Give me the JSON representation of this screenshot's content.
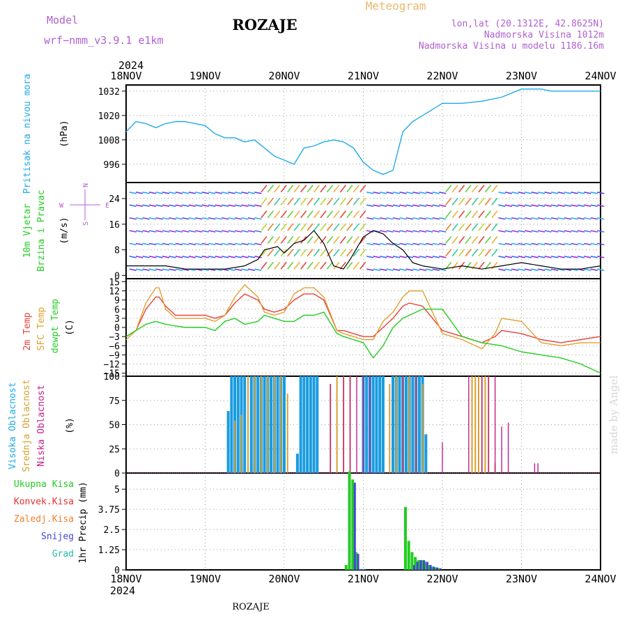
{
  "header": {
    "model_label": "Model",
    "model_name": "wrf−nmm_v3.9.1  e1km",
    "location": "ROZAJE",
    "meteogram_label": "Meteogram",
    "lonlat": "lon,lat (20.1312E, 42.8625N)",
    "elevation": "Nadmorska Visina 1012m",
    "model_elevation": "Nadmorska Visina u modelu 1186.16m",
    "year": "2024",
    "footer_station": "ROZAJE",
    "watermark": "made by Angel"
  },
  "x_axis": {
    "labels": [
      "18NOV",
      "19NOV",
      "20NOV",
      "21NOV",
      "22NOV",
      "23NOV",
      "24NOV"
    ],
    "year": "2024"
  },
  "colors": {
    "pressure": "#1eaae8",
    "temp2m": "#e8403a",
    "sfc_temp": "#e0a030",
    "dewpt": "#22cc22",
    "wind_speed": "#000000",
    "cloud_high": "#1a9ce0",
    "cloud_mid": "#d4a030",
    "cloud_low": "#c0208a",
    "precip_total": "#22cc22",
    "precip_conv": "#e83030",
    "precip_snow": "#4444dd",
    "precip_grad": "#22bbaa"
  },
  "panels": {
    "pressure": {
      "label_main": "Pritisak na nivou mora",
      "label_unit": "(hPa)",
      "ticks": [
        "1032",
        "1020",
        "1008",
        "996"
      ]
    },
    "wind": {
      "label_main": "10m Vjetar",
      "label_sub": "Brzina i Pravac",
      "label_unit": "(m/s)",
      "compass_n": "N",
      "compass_w": "W",
      "compass_e": "E",
      "compass_s": "S",
      "ticks": [
        "24",
        "16",
        "8",
        "0"
      ]
    },
    "temp": {
      "label_2m": "2m Temp",
      "label_sfc": "SFC Temp",
      "label_dew": "dewpt Temp",
      "label_unit": "(C)",
      "ticks": [
        "15",
        "12",
        "9",
        "6",
        "3",
        "0",
        "−3",
        "−6",
        "−9",
        "−12",
        "−15"
      ]
    },
    "cloud": {
      "label_high": "Visoka Oblacnost",
      "label_mid": "Srednja Oblacnost",
      "label_low": "Niska Oblacnost",
      "label_unit": "(%)",
      "ticks": [
        "100",
        "75",
        "50",
        "25",
        "0"
      ]
    },
    "precip": {
      "label_main": "1hr Precip (mm)",
      "legend_total": "Ukupna Kisa",
      "legend_conv": "Konvek.Kisa",
      "legend_frz": "Zaledj.Kisa",
      "legend_snow": "Snijeg",
      "legend_grad": "Grad",
      "ticks": [
        "5",
        "3.75",
        "2.5",
        "1.25",
        "0"
      ]
    }
  },
  "chart_data": [
    {
      "type": "line",
      "title": "Pritisak na nivou mora",
      "ylabel": "(hPa)",
      "ylim": [
        987,
        1035
      ],
      "x_unit": "hours from 18NOV 00UTC",
      "series": [
        {
          "name": "Pritisak na nivou mora",
          "x": [
            0,
            3,
            6,
            9,
            12,
            15,
            18,
            21,
            24,
            27,
            30,
            33,
            36,
            39,
            42,
            45,
            48,
            51,
            54,
            57,
            60,
            63,
            66,
            69,
            72,
            75,
            78,
            81,
            84,
            87,
            90,
            96,
            102,
            108,
            114,
            120,
            123,
            126,
            129,
            132,
            135,
            138,
            141,
            144
          ],
          "y": [
            1012,
            1017,
            1016,
            1014,
            1016,
            1017,
            1017,
            1016,
            1015,
            1011,
            1009,
            1009,
            1007,
            1008,
            1004,
            1000,
            998,
            996,
            1004,
            1005,
            1007,
            1008,
            1007,
            1004,
            997,
            993,
            991,
            993,
            1012,
            1017,
            1020,
            1026,
            1026,
            1027,
            1029,
            1033,
            1033,
            1033,
            1032,
            1032,
            1032,
            1032,
            1032,
            1032
          ]
        }
      ]
    },
    {
      "type": "line",
      "title": "10m Vjetar Brzina i Pravac",
      "ylabel": "(m/s)",
      "ylim": [
        -1,
        29
      ],
      "series": [
        {
          "name": "10m Vjetar",
          "x": [
            0,
            6,
            12,
            18,
            24,
            30,
            36,
            40,
            42,
            46,
            48,
            51,
            54,
            57,
            60,
            63,
            66,
            68,
            72,
            75,
            78,
            81,
            84,
            87,
            90,
            96,
            102,
            108,
            114,
            120,
            126,
            132,
            138,
            144
          ],
          "y": [
            3,
            3,
            3,
            2,
            2,
            2,
            3,
            5,
            8,
            9,
            7,
            10,
            11,
            14,
            10,
            3,
            2,
            5,
            12,
            14,
            13,
            10,
            8,
            4,
            3,
            2,
            3,
            2,
            3,
            4,
            3,
            2,
            2,
            3
          ]
        }
      ]
    },
    {
      "type": "line",
      "title": "Temperature",
      "ylabel": "(C)",
      "ylim": [
        -16,
        16
      ],
      "series": [
        {
          "name": "2m Temp",
          "x": [
            0,
            3,
            6,
            9,
            10,
            12,
            15,
            18,
            24,
            27,
            30,
            33,
            36,
            40,
            42,
            45,
            48,
            51,
            54,
            57,
            60,
            64,
            66,
            69,
            72,
            75,
            78,
            81,
            84,
            86,
            90,
            96,
            102,
            108,
            112,
            114,
            120,
            126,
            132,
            138,
            144
          ],
          "y": [
            -3,
            -1,
            6,
            10,
            10,
            7,
            4,
            4,
            4,
            3,
            4,
            8,
            11,
            9,
            6,
            5,
            6,
            9,
            11,
            11,
            9,
            -1,
            -1,
            -2,
            -3,
            -3,
            0,
            3,
            7,
            8,
            7,
            -1,
            -3,
            -5,
            -3,
            -1,
            -2,
            -4,
            -5,
            -4,
            -3
          ]
        },
        {
          "name": "SFC Temp",
          "x": [
            0,
            3,
            6,
            9,
            10,
            12,
            15,
            18,
            24,
            27,
            30,
            33,
            36,
            40,
            42,
            45,
            48,
            51,
            54,
            57,
            60,
            64,
            66,
            69,
            72,
            75,
            78,
            81,
            84,
            86,
            90,
            96,
            102,
            108,
            112,
            114,
            120,
            126,
            132,
            138,
            144
          ],
          "y": [
            -4,
            -1,
            8,
            13,
            13,
            6,
            3,
            3,
            3,
            2,
            4,
            10,
            14,
            10,
            5,
            4,
            5,
            11,
            13,
            13,
            10,
            -1,
            -2,
            -3,
            -4,
            -4,
            2,
            5,
            10,
            12,
            12,
            -2,
            -4,
            -7,
            -2,
            3,
            2,
            -5,
            -6,
            -5,
            -5
          ]
        },
        {
          "name": "dewpt Temp",
          "x": [
            0,
            3,
            6,
            9,
            12,
            18,
            24,
            27,
            30,
            33,
            36,
            40,
            42,
            45,
            48,
            51,
            54,
            57,
            60,
            64,
            66,
            69,
            72,
            75,
            78,
            81,
            84,
            90,
            96,
            102,
            108,
            114,
            120,
            126,
            132,
            138,
            144
          ],
          "y": [
            -3,
            -1,
            1,
            2,
            1,
            0,
            0,
            -1,
            2,
            3,
            1,
            2,
            4,
            3,
            2,
            2,
            4,
            4,
            5,
            -2,
            -3,
            -4,
            -5,
            -10,
            -6,
            0,
            3,
            6,
            6,
            -3,
            -5,
            -6,
            -8,
            -9,
            -10,
            -12,
            -15
          ]
        }
      ]
    },
    {
      "type": "bar",
      "title": "Oblacnost",
      "ylabel": "(%)",
      "ylim": [
        0,
        100
      ],
      "series": [
        {
          "name": "Visoka Oblacnost",
          "x": [
            31,
            32,
            33,
            34,
            35,
            36,
            38,
            39,
            40,
            41,
            42,
            43,
            44,
            45,
            46,
            47,
            48,
            52,
            53,
            54,
            55,
            56,
            57,
            58,
            72,
            73,
            74,
            75,
            76,
            77,
            78,
            81,
            82,
            83,
            84,
            85,
            86,
            87,
            88,
            89,
            90,
            91
          ],
          "y": [
            64,
            100,
            100,
            100,
            100,
            100,
            100,
            100,
            100,
            100,
            100,
            100,
            100,
            100,
            100,
            100,
            100,
            20,
            100,
            100,
            100,
            100,
            100,
            100,
            100,
            100,
            100,
            100,
            100,
            100,
            100,
            100,
            100,
            100,
            100,
            100,
            100,
            100,
            100,
            100,
            100,
            40
          ]
        },
        {
          "name": "Srednja Oblacnost",
          "x": [
            33,
            35,
            37,
            39,
            41,
            43,
            45,
            47,
            49,
            62,
            64,
            66,
            68,
            80,
            82,
            84,
            86,
            88,
            90,
            105,
            106,
            107,
            108,
            109,
            110,
            112
          ],
          "y": [
            54,
            60,
            100,
            100,
            100,
            100,
            100,
            100,
            82,
            92,
            100,
            100,
            100,
            92,
            100,
            100,
            100,
            100,
            92,
            100,
            100,
            100,
            100,
            100,
            100,
            10
          ]
        },
        {
          "name": "Niska Oblacnost",
          "x": [
            62,
            66,
            68,
            70,
            72,
            74,
            84,
            88,
            96,
            104,
            108,
            110,
            112,
            114,
            116,
            124,
            125
          ],
          "y": [
            92,
            100,
            100,
            100,
            100,
            100,
            100,
            100,
            32,
            100,
            100,
            100,
            100,
            48,
            52,
            10,
            10
          ]
        }
      ]
    },
    {
      "type": "bar",
      "title": "1hr Precip (mm)",
      "ylabel": "1hr Precip (mm)",
      "ylim": [
        0,
        6
      ],
      "series": [
        {
          "name": "Ukupna Kisa",
          "x": [
            67,
            68,
            69,
            70,
            71,
            72,
            85,
            86,
            87,
            88,
            89,
            90,
            91,
            92,
            93,
            94,
            95
          ],
          "y": [
            0.3,
            6.1,
            5.6,
            1.1,
            0.05,
            0.05,
            3.9,
            1.8,
            1.1,
            0.8,
            0.6,
            0.6,
            0.5,
            0.3,
            0.2,
            0.15,
            0.1
          ]
        },
        {
          "name": "Snijeg",
          "x": [
            69,
            70,
            71,
            72,
            87,
            88,
            89,
            90,
            91,
            92,
            93,
            94,
            95
          ],
          "y": [
            5.4,
            1.0,
            0.05,
            0.05,
            0.3,
            0.5,
            0.6,
            0.6,
            0.5,
            0.3,
            0.2,
            0.15,
            0.1
          ]
        }
      ]
    }
  ]
}
